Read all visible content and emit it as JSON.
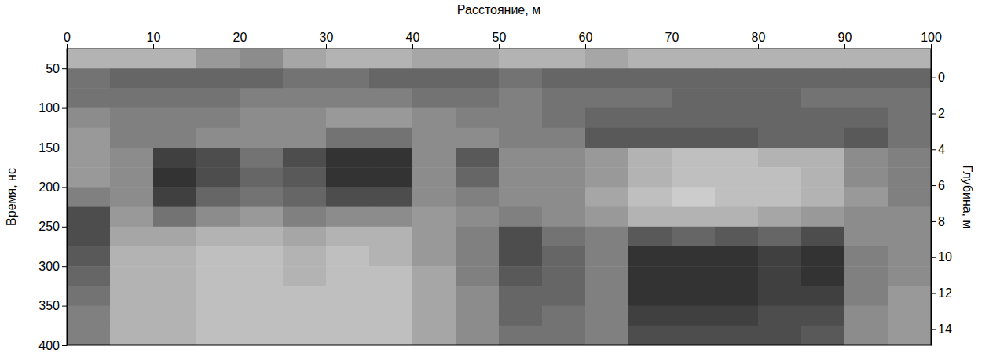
{
  "chart_data": {
    "type": "heatmap",
    "x_label": "Расстояние, м",
    "y_label": "Время, нс",
    "y2_label": "Глубина, м",
    "xlim": [
      0,
      100
    ],
    "xticks": [
      0,
      10,
      20,
      30,
      40,
      50,
      60,
      70,
      80,
      90,
      100
    ],
    "ylim": [
      25,
      400
    ],
    "yticks": [
      50,
      100,
      150,
      200,
      250,
      300,
      350,
      400
    ],
    "y2lim": [
      -1.6,
      14.9
    ],
    "y2ticks": [
      0,
      2,
      4,
      6,
      8,
      10,
      12,
      14
    ],
    "grid": false,
    "x_bins": [
      0,
      5,
      10,
      15,
      20,
      25,
      30,
      35,
      40,
      45,
      50,
      55,
      60,
      65,
      70,
      75,
      80,
      85,
      90,
      95,
      100
    ],
    "y_bins": [
      25,
      50,
      75,
      100,
      125,
      150,
      175,
      200,
      225,
      250,
      275,
      300,
      325,
      350,
      375,
      400
    ],
    "cells": [
      [
        0.3,
        0.3,
        0.3,
        0.4,
        0.45,
        0.35,
        0.3,
        0.3,
        0.35,
        0.35,
        0.3,
        0.3,
        0.35,
        0.3,
        0.3,
        0.3,
        0.3,
        0.3,
        0.3,
        0.3
      ],
      [
        0.55,
        0.6,
        0.6,
        0.6,
        0.6,
        0.55,
        0.55,
        0.6,
        0.6,
        0.6,
        0.55,
        0.6,
        0.6,
        0.6,
        0.6,
        0.6,
        0.6,
        0.6,
        0.6,
        0.6
      ],
      [
        0.55,
        0.55,
        0.55,
        0.55,
        0.5,
        0.5,
        0.5,
        0.5,
        0.55,
        0.55,
        0.5,
        0.55,
        0.55,
        0.55,
        0.6,
        0.6,
        0.6,
        0.55,
        0.55,
        0.55
      ],
      [
        0.45,
        0.5,
        0.5,
        0.5,
        0.45,
        0.45,
        0.4,
        0.4,
        0.45,
        0.5,
        0.5,
        0.55,
        0.6,
        0.6,
        0.6,
        0.6,
        0.6,
        0.6,
        0.6,
        0.55
      ],
      [
        0.4,
        0.5,
        0.5,
        0.45,
        0.45,
        0.45,
        0.55,
        0.55,
        0.45,
        0.45,
        0.5,
        0.5,
        0.65,
        0.65,
        0.65,
        0.65,
        0.6,
        0.6,
        0.65,
        0.55
      ],
      [
        0.4,
        0.45,
        0.75,
        0.7,
        0.55,
        0.7,
        0.8,
        0.8,
        0.45,
        0.65,
        0.45,
        0.45,
        0.4,
        0.3,
        0.25,
        0.25,
        0.3,
        0.3,
        0.45,
        0.5
      ],
      [
        0.4,
        0.45,
        0.8,
        0.7,
        0.6,
        0.65,
        0.8,
        0.8,
        0.45,
        0.6,
        0.45,
        0.45,
        0.4,
        0.3,
        0.25,
        0.25,
        0.25,
        0.3,
        0.45,
        0.5
      ],
      [
        0.5,
        0.45,
        0.75,
        0.6,
        0.55,
        0.6,
        0.7,
        0.7,
        0.45,
        0.5,
        0.45,
        0.45,
        0.35,
        0.25,
        0.2,
        0.25,
        0.25,
        0.3,
        0.4,
        0.5
      ],
      [
        0.7,
        0.4,
        0.55,
        0.45,
        0.4,
        0.5,
        0.45,
        0.45,
        0.4,
        0.45,
        0.5,
        0.45,
        0.4,
        0.3,
        0.3,
        0.3,
        0.35,
        0.4,
        0.45,
        0.45
      ],
      [
        0.7,
        0.35,
        0.35,
        0.3,
        0.3,
        0.35,
        0.3,
        0.3,
        0.4,
        0.5,
        0.7,
        0.55,
        0.5,
        0.65,
        0.6,
        0.65,
        0.6,
        0.7,
        0.45,
        0.45
      ],
      [
        0.65,
        0.3,
        0.3,
        0.25,
        0.25,
        0.3,
        0.25,
        0.3,
        0.4,
        0.5,
        0.7,
        0.6,
        0.5,
        0.8,
        0.8,
        0.8,
        0.75,
        0.8,
        0.5,
        0.45
      ],
      [
        0.6,
        0.3,
        0.3,
        0.25,
        0.25,
        0.3,
        0.25,
        0.25,
        0.35,
        0.5,
        0.65,
        0.6,
        0.5,
        0.8,
        0.8,
        0.8,
        0.75,
        0.8,
        0.5,
        0.45
      ],
      [
        0.55,
        0.3,
        0.3,
        0.25,
        0.25,
        0.25,
        0.25,
        0.25,
        0.35,
        0.45,
        0.6,
        0.6,
        0.5,
        0.8,
        0.8,
        0.8,
        0.75,
        0.75,
        0.5,
        0.4
      ],
      [
        0.5,
        0.3,
        0.3,
        0.25,
        0.25,
        0.25,
        0.25,
        0.25,
        0.35,
        0.45,
        0.6,
        0.55,
        0.5,
        0.75,
        0.75,
        0.75,
        0.7,
        0.7,
        0.45,
        0.4
      ],
      [
        0.5,
        0.3,
        0.3,
        0.25,
        0.25,
        0.25,
        0.25,
        0.25,
        0.35,
        0.45,
        0.55,
        0.55,
        0.5,
        0.7,
        0.7,
        0.7,
        0.7,
        0.65,
        0.45,
        0.4
      ]
    ]
  }
}
